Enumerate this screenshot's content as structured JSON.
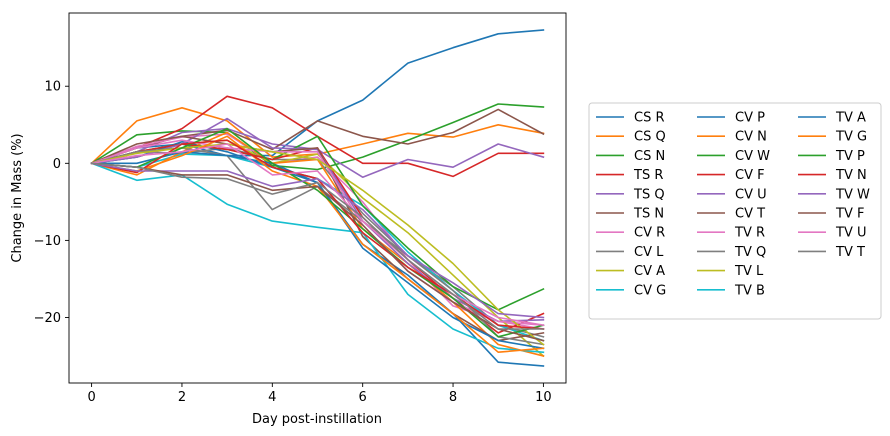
{
  "chart_data": {
    "type": "line",
    "title": "",
    "xlabel": "Day post-instillation",
    "ylabel": "Change in Mass (%)",
    "xlim": [
      -0.5,
      10.5
    ],
    "ylim": [
      -28.5,
      19.5
    ],
    "xticks": [
      0,
      2,
      4,
      6,
      8,
      10
    ],
    "yticks": [
      -20,
      -10,
      0,
      10
    ],
    "grid": false,
    "legend": {
      "placement": "right",
      "columns": 3
    },
    "x": [
      0,
      1,
      2,
      3,
      4,
      5,
      6,
      7,
      8,
      9,
      10
    ],
    "series": [
      {
        "name": "CS R",
        "color": "#1f77b4",
        "values": [
          0,
          2,
          2.5,
          1,
          1,
          5.5,
          8.2,
          13,
          15,
          16.8,
          17.3
        ]
      },
      {
        "name": "CS Q",
        "color": "#ff7f0e",
        "values": [
          0,
          5.5,
          7.2,
          5.5,
          0.8,
          1.2,
          2.5,
          3.9,
          3.4,
          5,
          3.9
        ]
      },
      {
        "name": "CS N",
        "color": "#2ca02c",
        "values": [
          0,
          3.7,
          4.2,
          4,
          -0.3,
          -0.8,
          0.8,
          3,
          5.3,
          7.7,
          7.3
        ]
      },
      {
        "name": "TS R",
        "color": "#d62728",
        "values": [
          0,
          2,
          4.5,
          8.7,
          7.2,
          3.5,
          0,
          0,
          -1.7,
          1.3,
          1.3
        ]
      },
      {
        "name": "TS Q",
        "color": "#9467bd",
        "values": [
          0,
          1.5,
          4,
          4.5,
          2.5,
          1.8,
          -1.8,
          0.5,
          -0.5,
          2.5,
          0.8
        ]
      },
      {
        "name": "TS N",
        "color": "#8c564b",
        "values": [
          0,
          2,
          3.5,
          4.3,
          1.8,
          5.5,
          3.5,
          2.5,
          4,
          7,
          3.8
        ]
      },
      {
        "name": "CV R",
        "color": "#e377c2",
        "values": [
          0,
          2.2,
          3.4,
          3.8,
          0,
          0.8,
          -5,
          -12.5,
          -18.5,
          -20.5,
          -21.5
        ]
      },
      {
        "name": "CV L",
        "color": "#7f7f7f",
        "values": [
          0,
          1.5,
          1.3,
          2,
          0.5,
          0.5,
          -6.5,
          -12,
          -16,
          -21,
          -22.5
        ]
      },
      {
        "name": "CV A",
        "color": "#bcbd22",
        "values": [
          0,
          0.8,
          2.5,
          3,
          0,
          1.2,
          -4.5,
          -9,
          -14.5,
          -20,
          -25
        ]
      },
      {
        "name": "CV G",
        "color": "#17becf",
        "values": [
          0,
          -0.5,
          1.2,
          1,
          -0.5,
          -2,
          -5.5,
          -11.5,
          -16.5,
          -21,
          -23
        ]
      },
      {
        "name": "CV P",
        "color": "#1f77b4",
        "values": [
          0,
          0.8,
          2.8,
          1.5,
          -0.5,
          -2.5,
          -10.5,
          -14.5,
          -19.5,
          -25.8,
          -26.3
        ]
      },
      {
        "name": "CV N",
        "color": "#ff7f0e",
        "values": [
          0,
          -1.5,
          1.5,
          4,
          0,
          0.5,
          -8.5,
          -13,
          -18,
          -23.5,
          -25
        ]
      },
      {
        "name": "CV W",
        "color": "#2ca02c",
        "values": [
          0,
          1.5,
          2.5,
          1.8,
          0.5,
          3.5,
          -5.5,
          -11,
          -16,
          -19,
          -16.3
        ]
      },
      {
        "name": "CV F",
        "color": "#d62728",
        "values": [
          0,
          1.5,
          2.5,
          1.8,
          0.5,
          2,
          -7,
          -12.5,
          -17.5,
          -22,
          -19.5
        ]
      },
      {
        "name": "CV U",
        "color": "#9467bd",
        "values": [
          0,
          0.8,
          2.5,
          5.8,
          2,
          1.8,
          -7.5,
          -13,
          -17.5,
          -20.5,
          -20.3
        ]
      },
      {
        "name": "CV T",
        "color": "#8c564b",
        "values": [
          0,
          2.5,
          3.5,
          2.5,
          1.5,
          2,
          -9.5,
          -15,
          -19.5,
          -23,
          -22
        ]
      },
      {
        "name": "TV R",
        "color": "#e377c2",
        "values": [
          0,
          2,
          3,
          2,
          1.5,
          1.5,
          -8,
          -14,
          -18,
          -20.5,
          -21
        ]
      },
      {
        "name": "TV Q",
        "color": "#7f7f7f",
        "values": [
          0,
          1.5,
          2,
          1,
          -6,
          -3,
          -7.5,
          -12,
          -16.5,
          -22.5,
          -23.5
        ]
      },
      {
        "name": "TV L",
        "color": "#bcbd22",
        "values": [
          0,
          1.3,
          2,
          2.5,
          1.5,
          0.5,
          -3.5,
          -8,
          -13,
          -19,
          -23.5
        ]
      },
      {
        "name": "TV B",
        "color": "#17becf",
        "values": [
          0,
          -2.2,
          -1.5,
          -5.3,
          -7.5,
          -8.3,
          -9,
          -17,
          -21.5,
          -24,
          -24.5
        ]
      },
      {
        "name": "TV A",
        "color": "#1f77b4",
        "values": [
          0,
          0,
          1.5,
          1,
          0,
          -2.5,
          -11,
          -15.5,
          -20,
          -23,
          -24
        ]
      },
      {
        "name": "TV G",
        "color": "#ff7f0e",
        "values": [
          0,
          -1,
          1,
          3.5,
          -1,
          -3,
          -10.5,
          -15,
          -19.5,
          -24.5,
          -24
        ]
      },
      {
        "name": "TV P",
        "color": "#2ca02c",
        "values": [
          0,
          -0.5,
          2,
          4.5,
          0,
          -3.5,
          -8.5,
          -13.5,
          -17.5,
          -22.5,
          -21
        ]
      },
      {
        "name": "TV N",
        "color": "#d62728",
        "values": [
          0,
          -1.2,
          2.5,
          3,
          -0.5,
          -2,
          -9,
          -13.5,
          -17,
          -21,
          -21.5
        ]
      },
      {
        "name": "TV W",
        "color": "#9467bd",
        "values": [
          0,
          -1,
          -1,
          -1,
          -3,
          -2,
          -6,
          -12,
          -15.5,
          -19.5,
          -20
        ]
      },
      {
        "name": "TV F",
        "color": "#8c564b",
        "values": [
          0,
          -0.5,
          -1.5,
          -1.5,
          -3.5,
          -3,
          -8,
          -14,
          -18,
          -21.5,
          -23
        ]
      },
      {
        "name": "TV U",
        "color": "#e377c2",
        "values": [
          0,
          1,
          1.5,
          2.5,
          -1.5,
          -1,
          -7.5,
          -12.5,
          -17,
          -20,
          -21
        ]
      },
      {
        "name": "TV T",
        "color": "#7f7f7f",
        "values": [
          0,
          -0.5,
          -1.8,
          -2,
          -4,
          -2.5,
          -7,
          -12.5,
          -17,
          -21.5,
          -21.5
        ]
      }
    ]
  }
}
